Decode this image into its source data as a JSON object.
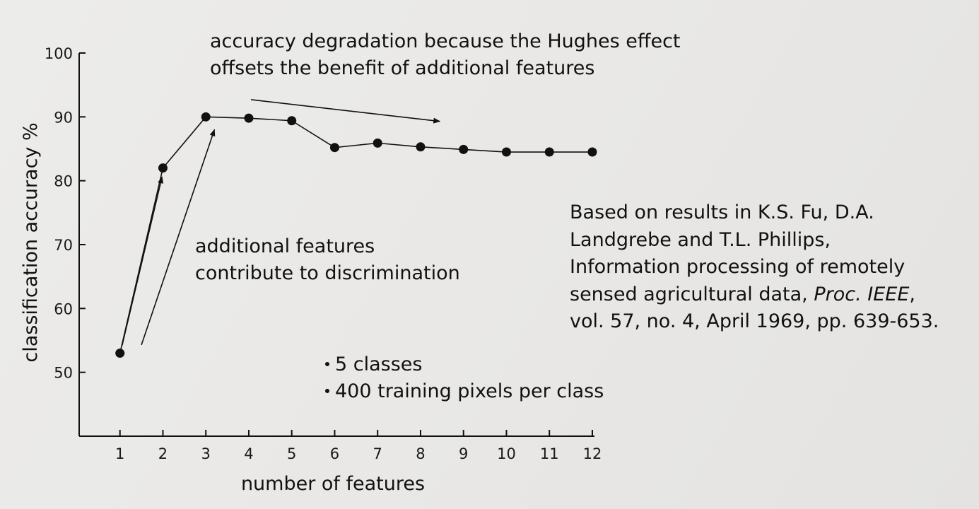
{
  "chart_data": {
    "type": "line",
    "title": "",
    "xlabel": "number of features",
    "ylabel": "classification accuracy %",
    "xlim": [
      0.05,
      12.05
    ],
    "ylim": [
      40,
      100
    ],
    "x_ticks": [
      1,
      2,
      3,
      4,
      5,
      6,
      7,
      8,
      9,
      10,
      11,
      12
    ],
    "y_ticks": [
      50,
      60,
      70,
      80,
      90,
      100
    ],
    "series": [
      {
        "x": [
          1,
          2,
          3,
          4,
          5,
          6,
          7,
          8,
          9,
          10,
          11,
          12
        ],
        "values": [
          53,
          82,
          90,
          89.8,
          89.4,
          85.2,
          85.9,
          85.3,
          84.9,
          84.5,
          84.5,
          84.5
        ]
      }
    ],
    "grid": false,
    "legend": "none",
    "annotations": {
      "hughes": [
        "accuracy degradation because the Hughes effect",
        "offsets the benefit of additional features"
      ],
      "features": [
        "additional features",
        "contribute to discrimination"
      ],
      "bullets": [
        "5 classes",
        "400 training pixels per class"
      ]
    },
    "arrows": [
      {
        "name": "rise-arrow-1",
        "from": [
          1.05,
          54.2
        ],
        "to": [
          1.98,
          80.6
        ]
      },
      {
        "name": "rise-arrow-2",
        "from": [
          1.5,
          54.3
        ],
        "to": [
          3.2,
          88
        ]
      },
      {
        "name": "degradation-arrow",
        "from": [
          4.05,
          92.7
        ],
        "to": [
          8.45,
          89.3
        ]
      }
    ],
    "colors": {
      "line": "#111111",
      "marker": "#111111",
      "text": "#111111"
    }
  },
  "citation": {
    "line1": "Based on results in K.S. Fu, D.A.",
    "line2": "Landgrebe and T.L. Phillips,",
    "line3": "Information processing of remotely",
    "line4_a": "sensed agricultural data, ",
    "line4_em": "Proc. IEEE",
    "line4_b": ",",
    "line5": "vol. 57, no. 4, April 1969, pp. 639-653."
  }
}
